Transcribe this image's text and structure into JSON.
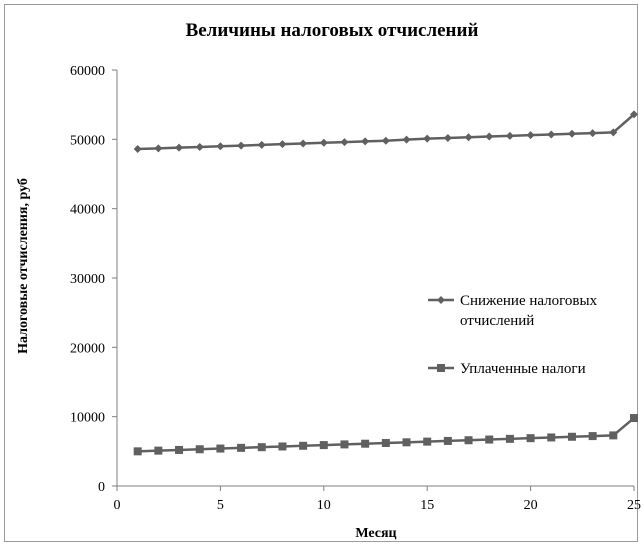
{
  "chart_data": {
    "type": "line",
    "title": "Величины налоговых отчислений",
    "xlabel": "Месяц",
    "ylabel": "Налоговые отчисления, руб",
    "xlim": [
      0,
      25
    ],
    "ylim": [
      0,
      60000
    ],
    "xticks": [
      "0",
      "5",
      "10",
      "15",
      "20",
      "25"
    ],
    "yticks": [
      "0",
      "10000",
      "20000",
      "30000",
      "40000",
      "50000",
      "60000"
    ],
    "grid": false,
    "legend_position": "right",
    "x": [
      1,
      2,
      3,
      4,
      5,
      6,
      7,
      8,
      9,
      10,
      11,
      12,
      13,
      14,
      15,
      16,
      17,
      18,
      19,
      20,
      21,
      22,
      23,
      24,
      25
    ],
    "series": [
      {
        "name": "Снижение налоговых отчислений",
        "legend_lines": [
          "Снижение налоговых",
          "отчислений"
        ],
        "marker": "diamond",
        "color": "#606060",
        "values": [
          48600,
          48700,
          48800,
          48900,
          49000,
          49100,
          49200,
          49300,
          49400,
          49500,
          49600,
          49700,
          49800,
          49950,
          50100,
          50200,
          50300,
          50400,
          50500,
          50600,
          50700,
          50800,
          50900,
          51000,
          53600
        ]
      },
      {
        "name": "Уплаченные налоги",
        "legend_lines": [
          "Уплаченные налоги"
        ],
        "marker": "square",
        "color": "#606060",
        "values": [
          5000,
          5100,
          5200,
          5300,
          5400,
          5500,
          5600,
          5700,
          5800,
          5900,
          6000,
          6100,
          6200,
          6300,
          6400,
          6500,
          6600,
          6700,
          6800,
          6900,
          7000,
          7100,
          7200,
          7300,
          9800
        ]
      }
    ]
  }
}
